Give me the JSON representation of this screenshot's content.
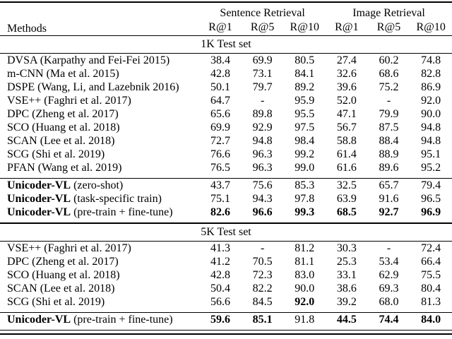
{
  "colors": {
    "background": "#ffffff",
    "text": "#000000",
    "rule": "#000000"
  },
  "table": {
    "header": {
      "methods_label": "Methods",
      "groups": [
        {
          "label": "Sentence Retrieval",
          "metrics": [
            "R@1",
            "R@5",
            "R@10"
          ]
        },
        {
          "label": "Image Retrieval",
          "metrics": [
            "R@1",
            "R@5",
            "R@10"
          ]
        }
      ]
    },
    "sections": [
      {
        "title": "1K Test set",
        "blocks": [
          {
            "rows": [
              {
                "name": "DVSA",
                "bold_name": false,
                "cite": "(Karpathy and Fei-Fei 2015)",
                "values": [
                  "38.4",
                  "69.9",
                  "80.5",
                  "27.4",
                  "60.2",
                  "74.8"
                ],
                "bold": [
                  false,
                  false,
                  false,
                  false,
                  false,
                  false
                ]
              },
              {
                "name": "m-CNN",
                "bold_name": false,
                "cite": "(Ma et al. 2015)",
                "values": [
                  "42.8",
                  "73.1",
                  "84.1",
                  "32.6",
                  "68.6",
                  "82.8"
                ],
                "bold": [
                  false,
                  false,
                  false,
                  false,
                  false,
                  false
                ]
              },
              {
                "name": "DSPE",
                "bold_name": false,
                "cite": "(Wang, Li, and Lazebnik 2016)",
                "values": [
                  "50.1",
                  "79.7",
                  "89.2",
                  "39.6",
                  "75.2",
                  "86.9"
                ],
                "bold": [
                  false,
                  false,
                  false,
                  false,
                  false,
                  false
                ]
              },
              {
                "name": "VSE++",
                "bold_name": false,
                "cite": "(Faghri et al. 2017)",
                "values": [
                  "64.7",
                  "-",
                  "95.9",
                  "52.0",
                  "-",
                  "92.0"
                ],
                "bold": [
                  false,
                  false,
                  false,
                  false,
                  false,
                  false
                ]
              },
              {
                "name": "DPC",
                "bold_name": false,
                "cite": "(Zheng et al. 2017)",
                "values": [
                  "65.6",
                  "89.8",
                  "95.5",
                  "47.1",
                  "79.9",
                  "90.0"
                ],
                "bold": [
                  false,
                  false,
                  false,
                  false,
                  false,
                  false
                ]
              },
              {
                "name": "SCO",
                "bold_name": false,
                "cite": "(Huang et al. 2018)",
                "values": [
                  "69.9",
                  "92.9",
                  "97.5",
                  "56.7",
                  "87.5",
                  "94.8"
                ],
                "bold": [
                  false,
                  false,
                  false,
                  false,
                  false,
                  false
                ]
              },
              {
                "name": "SCAN",
                "bold_name": false,
                "cite": "(Lee et al. 2018)",
                "values": [
                  "72.7",
                  "94.8",
                  "98.4",
                  "58.8",
                  "88.4",
                  "94.8"
                ],
                "bold": [
                  false,
                  false,
                  false,
                  false,
                  false,
                  false
                ]
              },
              {
                "name": "SCG",
                "bold_name": false,
                "cite": "(Shi et al. 2019)",
                "values": [
                  "76.6",
                  "96.3",
                  "99.2",
                  "61.4",
                  "88.9",
                  "95.1"
                ],
                "bold": [
                  false,
                  false,
                  false,
                  false,
                  false,
                  false
                ]
              },
              {
                "name": "PFAN",
                "bold_name": false,
                "cite": "(Wang et al. 2019)",
                "values": [
                  "76.5",
                  "96.3",
                  "99.0",
                  "61.6",
                  "89.6",
                  "95.2"
                ],
                "bold": [
                  false,
                  false,
                  false,
                  false,
                  false,
                  false
                ]
              }
            ]
          },
          {
            "rows": [
              {
                "name": "Unicoder-VL",
                "bold_name": true,
                "cite": "(zero-shot)",
                "values": [
                  "43.7",
                  "75.6",
                  "85.3",
                  "32.5",
                  "65.7",
                  "79.4"
                ],
                "bold": [
                  false,
                  false,
                  false,
                  false,
                  false,
                  false
                ]
              },
              {
                "name": "Unicoder-VL",
                "bold_name": true,
                "cite": "(task-specific train)",
                "values": [
                  "75.1",
                  "94.3",
                  "97.8",
                  "63.9",
                  "91.6",
                  "96.5"
                ],
                "bold": [
                  false,
                  false,
                  false,
                  false,
                  false,
                  false
                ]
              },
              {
                "name": "Unicoder-VL",
                "bold_name": true,
                "cite": "(pre-train + fine-tune)",
                "values": [
                  "82.6",
                  "96.6",
                  "99.3",
                  "68.5",
                  "92.7",
                  "96.9"
                ],
                "bold": [
                  true,
                  true,
                  true,
                  true,
                  true,
                  true
                ]
              }
            ]
          }
        ]
      },
      {
        "title": "5K Test set",
        "blocks": [
          {
            "rows": [
              {
                "name": "VSE++",
                "bold_name": false,
                "cite": "(Faghri et al. 2017)",
                "values": [
                  "41.3",
                  "-",
                  "81.2",
                  "30.3",
                  "-",
                  "72.4"
                ],
                "bold": [
                  false,
                  false,
                  false,
                  false,
                  false,
                  false
                ]
              },
              {
                "name": "DPC",
                "bold_name": false,
                "cite": "(Zheng et al. 2017)",
                "values": [
                  "41.2",
                  "70.5",
                  "81.1",
                  "25.3",
                  "53.4",
                  "66.4"
                ],
                "bold": [
                  false,
                  false,
                  false,
                  false,
                  false,
                  false
                ]
              },
              {
                "name": "SCO",
                "bold_name": false,
                "cite": "(Huang et al. 2018)",
                "values": [
                  "42.8",
                  "72.3",
                  "83.0",
                  "33.1",
                  "62.9",
                  "75.5"
                ],
                "bold": [
                  false,
                  false,
                  false,
                  false,
                  false,
                  false
                ]
              },
              {
                "name": "SCAN",
                "bold_name": false,
                "cite": "(Lee et al. 2018)",
                "values": [
                  "50.4",
                  "82.2",
                  "90.0",
                  "38.6",
                  "69.3",
                  "80.4"
                ],
                "bold": [
                  false,
                  false,
                  false,
                  false,
                  false,
                  false
                ]
              },
              {
                "name": "SCG",
                "bold_name": false,
                "cite": "(Shi et al. 2019)",
                "values": [
                  "56.6",
                  "84.5",
                  "92.0",
                  "39.2",
                  "68.0",
                  "81.3"
                ],
                "bold": [
                  false,
                  false,
                  true,
                  false,
                  false,
                  false
                ]
              }
            ]
          },
          {
            "rows": [
              {
                "name": "Unicoder-VL",
                "bold_name": true,
                "cite": "(pre-train + fine-tune)",
                "values": [
                  "59.6",
                  "85.1",
                  "91.8",
                  "44.5",
                  "74.4",
                  "84.0"
                ],
                "bold": [
                  true,
                  true,
                  false,
                  true,
                  true,
                  true
                ]
              }
            ]
          }
        ]
      }
    ]
  }
}
